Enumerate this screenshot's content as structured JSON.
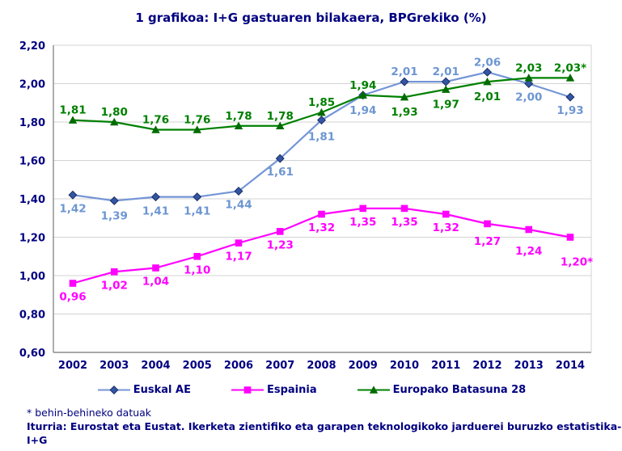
{
  "chart_data": {
    "type": "line",
    "title": "1 grafikoa: I+G gastuaren bilakaera, BPGrekiko (%)",
    "categories": [
      "2002",
      "2003",
      "2004",
      "2005",
      "2006",
      "2007",
      "2008",
      "2009",
      "2010",
      "2011",
      "2012",
      "2013",
      "2014"
    ],
    "ylim": [
      0.6,
      2.2
    ],
    "ytick_values": [
      0.6,
      0.8,
      1.0,
      1.2,
      1.4,
      1.6,
      1.8,
      2.0,
      2.2
    ],
    "ytick_labels": [
      "0,60",
      "0,80",
      "1,00",
      "1,20",
      "1,40",
      "1,60",
      "1,80",
      "2,00",
      "2,20"
    ],
    "grid": true,
    "legend_position": "bottom",
    "colors": {
      "navy": "#000080",
      "gridline": "#d3d3d3",
      "axis": "#8c8c8c"
    },
    "series": [
      {
        "name": "Euskal AE",
        "marker": "diamond",
        "color": "#7495d6",
        "marker_fill": "#3355a4",
        "marker_stroke": "#1b2d63",
        "label_color": "#6d96d2",
        "values": [
          1.42,
          1.39,
          1.41,
          1.41,
          1.44,
          1.61,
          1.81,
          1.94,
          2.01,
          2.01,
          2.06,
          2.0,
          1.93
        ],
        "labels": [
          "1,42",
          "1,39",
          "1,41",
          "1,41",
          "1,44",
          "1,61",
          "1,81",
          "1,94",
          "2,01",
          "2,01",
          "2,06",
          "2,00",
          "1,93"
        ],
        "label_pos": [
          "below",
          "below",
          "below",
          "below",
          "below",
          "below",
          "below",
          "below",
          "above",
          "above",
          "above",
          "below",
          "below"
        ],
        "label_dy": [
          0,
          2,
          1,
          1,
          0,
          0,
          4,
          2,
          0,
          0,
          0,
          0,
          0
        ]
      },
      {
        "name": "Espainia",
        "marker": "square",
        "color": "#ff00ff",
        "marker_fill": "#ff00ff",
        "marker_stroke": "#ff00ff",
        "label_color": "#ff00ff",
        "values": [
          0.96,
          1.02,
          1.04,
          1.1,
          1.17,
          1.23,
          1.32,
          1.35,
          1.35,
          1.32,
          1.27,
          1.24,
          1.2
        ],
        "labels": [
          "0,96",
          "1,02",
          "1,04",
          "1,10",
          "1,17",
          "1,23",
          "1,32",
          "1,35",
          "1,35",
          "1,32",
          "1,27",
          "1,24",
          "1,20*"
        ],
        "label_pos": [
          "below",
          "below",
          "below",
          "below",
          "below",
          "below",
          "below",
          "below",
          "below",
          "below",
          "below",
          "below",
          "below"
        ],
        "label_dy": [
          0,
          0,
          0,
          0,
          0,
          0,
          0,
          0,
          0,
          0,
          5,
          10,
          14
        ],
        "label_dx": [
          0,
          0,
          0,
          0,
          0,
          0,
          0,
          0,
          0,
          0,
          0,
          0,
          8
        ]
      },
      {
        "name": "Europako Batasuna 28",
        "marker": "triangle",
        "color": "#008000",
        "marker_fill": "#006b00",
        "marker_stroke": "#004d00",
        "label_color": "#008000",
        "values": [
          1.81,
          1.8,
          1.76,
          1.76,
          1.78,
          1.78,
          1.85,
          1.94,
          1.93,
          1.97,
          2.01,
          2.03,
          2.03
        ],
        "labels": [
          "1,81",
          "1,80",
          "1,76",
          "1,76",
          "1,78",
          "1,78",
          "1,85",
          "1,94",
          "1,93",
          "1,97",
          "2,01",
          "2,03",
          "2,03*"
        ],
        "label_pos": [
          "above",
          "above",
          "above",
          "above",
          "above",
          "above",
          "above",
          "above",
          "below",
          "below",
          "below",
          "above",
          "above"
        ],
        "label_dy": [
          0,
          0,
          0,
          0,
          0,
          0,
          0,
          0,
          2,
          2,
          2,
          0,
          0
        ]
      }
    ]
  },
  "footnotes": {
    "asterisk": "* behin-behineko datuak",
    "source": "Iturria: Eurostat eta Eustat. Ikerketa zientifiko eta garapen teknologikoko jarduerei buruzko estatistika-I+G"
  }
}
